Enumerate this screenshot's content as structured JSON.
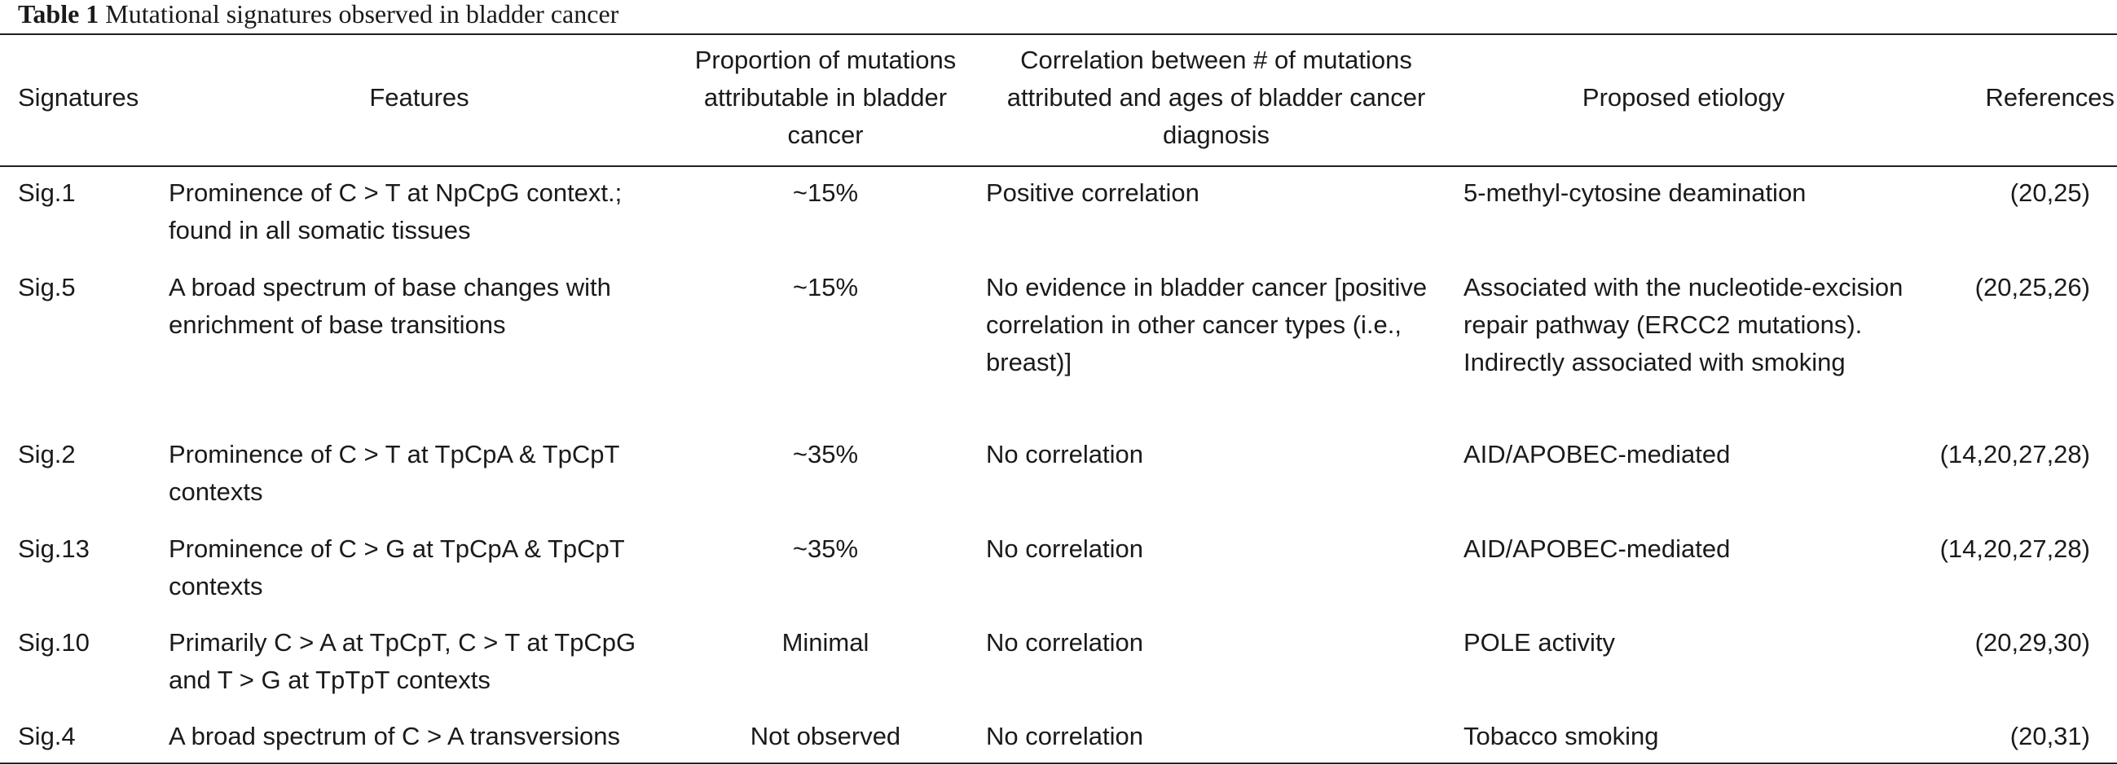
{
  "caption": {
    "label": "Table 1",
    "title": "Mutational signatures observed in bladder cancer"
  },
  "headers": {
    "signatures": "Signatures",
    "features": "Features",
    "proportion": "Proportion of mutations attributable in bladder cancer",
    "correlation": "Correlation between # of mutations attributed and ages of bladder cancer diagnosis",
    "etiology": "Proposed etiology",
    "references": "References"
  },
  "rows": [
    {
      "signature": "Sig.1",
      "features": "Prominence of C > T at NpCpG context.; found in all somatic tissues",
      "proportion": "~15%",
      "correlation": "Positive correlation",
      "etiology": "5-methyl-cytosine deamination",
      "references": "(20,25)"
    },
    {
      "signature": "Sig.5",
      "features": "A broad spectrum of base changes with enrichment of base transitions",
      "proportion": "~15%",
      "correlation": "No evidence in bladder cancer [positive correlation in other cancer types (i.e., breast)]",
      "etiology": "Associated with the nucleotide-excision repair pathway (ERCC2 mutations). Indirectly associated with smoking",
      "references": "(20,25,26)"
    },
    {
      "signature": "Sig.2",
      "features": "Prominence of C > T at TpCpA & TpCpT contexts",
      "proportion": "~35%",
      "correlation": "No correlation",
      "etiology": "AID/APOBEC-mediated",
      "references": "(14,20,27,28)"
    },
    {
      "signature": "Sig.13",
      "features": "Prominence of C > G at TpCpA & TpCpT contexts",
      "proportion": "~35%",
      "correlation": "No correlation",
      "etiology": "AID/APOBEC-mediated",
      "references": "(14,20,27,28)"
    },
    {
      "signature": "Sig.10",
      "features": "Primarily C > A at TpCpT, C > T at TpCpG and T > G at TpTpT contexts",
      "proportion": "Minimal",
      "correlation": "No correlation",
      "etiology": "POLE activity",
      "references": "(20,29,30)"
    },
    {
      "signature": "Sig.4",
      "features": "A broad spectrum of C > A transversions",
      "proportion": "Not observed",
      "correlation": "No correlation",
      "etiology": "Tobacco smoking",
      "references": "(20,31)"
    }
  ]
}
